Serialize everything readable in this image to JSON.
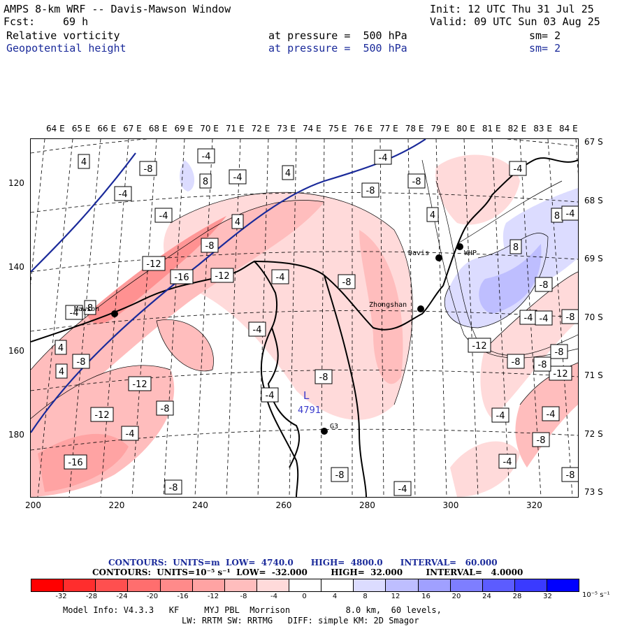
{
  "header": {
    "title": "AMPS 8-km WRF -- Davis-Mawson Window",
    "init": "Init: 12 UTC Thu 31 Jul 25",
    "fcst_label": "Fcst:",
    "fcst_value": "69 h",
    "valid": "Valid: 09 UTC Sun 03 Aug 25",
    "field1": {
      "name": "Relative vorticity",
      "pressure": "at pressure =  500 hPa",
      "sm": "sm= 2"
    },
    "field2": {
      "name": "Geopotential height",
      "pressure": "at pressure =  500 hPa",
      "sm": "sm= 2"
    }
  },
  "axes": {
    "top_lon": [
      "64 E",
      "65 E",
      "66 E",
      "67 E",
      "68 E",
      "69 E",
      "70 E",
      "71 E",
      "72 E",
      "73 E",
      "74 E",
      "75 E",
      "76 E",
      "77 E",
      "78 E",
      "79 E",
      "80 E",
      "81 E",
      "82 E",
      "83 E",
      "84 E"
    ],
    "right_lat": [
      "67 S",
      "68 S",
      "69 S",
      "70 S",
      "71 S",
      "72 S",
      "73 S"
    ],
    "left_y": [
      "120",
      "140",
      "160",
      "180"
    ],
    "bottom_x": [
      "200",
      "220",
      "240",
      "260",
      "280",
      "300",
      "320"
    ]
  },
  "stations": [
    {
      "name": "Mawson"
    },
    {
      "name": "Davis"
    },
    {
      "name": "WHP"
    },
    {
      "name": "Zhongshan"
    },
    {
      "name": "G3"
    }
  ],
  "low_center": {
    "symbol": "L",
    "value": "4791"
  },
  "contour_labels": [
    "4",
    "-8",
    "-4",
    "8",
    "-4",
    "4",
    "-4",
    "-8",
    "-4",
    "-8",
    "-4",
    "4",
    "-4",
    "4",
    "-8",
    "-12",
    "8",
    "-16",
    "-12",
    "-4",
    "-8",
    "8",
    "-4",
    "8",
    "-8",
    "-4",
    "-4",
    "4",
    "-12",
    "-4",
    "-8",
    "-8",
    "-4",
    "-4",
    "-8",
    "-8",
    "-12",
    "-8",
    "-12",
    "-4",
    "-4",
    "-16",
    "-8",
    "-4",
    "-8",
    "4",
    "-8",
    "-8",
    "-8",
    "-4",
    "-12",
    "-8",
    "-4"
  ],
  "contour_info": {
    "line1": "CONTOURS:  UNITS=m  LOW=  4740.0      HIGH=  4800.0      INTERVAL=   60.000",
    "line2": "CONTOURS:  UNITS=10⁻⁵ s⁻¹  LOW=  -32.000        HIGH=  32.000        INTERVAL=   4.0000"
  },
  "colorbar": {
    "labels": [
      "-32",
      "-28",
      "-24",
      "-20",
      "-16",
      "-12",
      "-8",
      "-4",
      "0",
      "4",
      "8",
      "12",
      "16",
      "20",
      "24",
      "28",
      "32"
    ],
    "unit": "10⁻⁵ s⁻¹",
    "colors": [
      "#ff0000",
      "#ff2d2d",
      "#ff4f4f",
      "#ff6e6e",
      "#ff8a8a",
      "#ffa3a3",
      "#ffbdbd",
      "#ffdada",
      "#ffffff",
      "#ffffff",
      "#dcdcff",
      "#bebeff",
      "#a0a0ff",
      "#7e7eff",
      "#5c5cff",
      "#3a3aff",
      "#0000ff"
    ]
  },
  "footer": {
    "line1": "Model Info: V4.3.3   KF     MYJ PBL  Morrison           8.0 km,  60 levels,",
    "line2": "LW: RRTM SW: RRTMG   DIFF: simple KM: 2D Smagor"
  }
}
